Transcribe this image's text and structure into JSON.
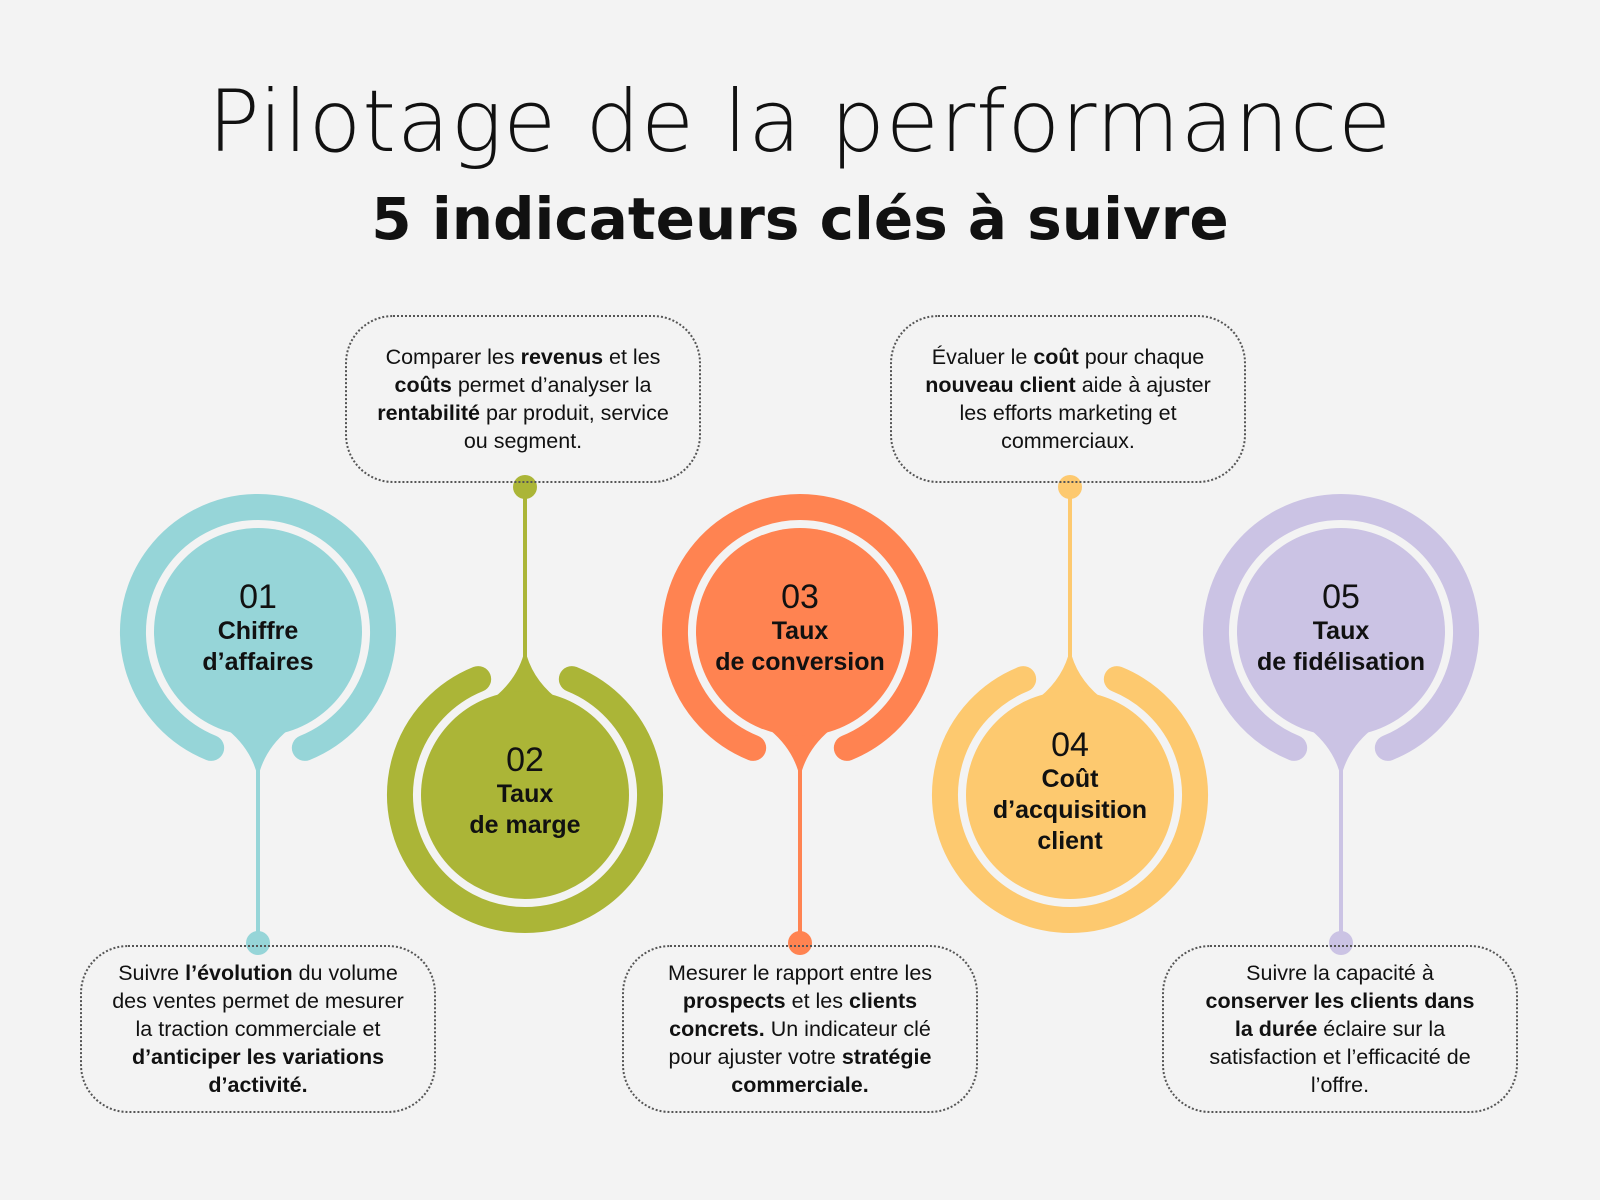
{
  "header": {
    "title": "Pilotage de la performance",
    "subtitle": "5 indicateurs clés à suivre"
  },
  "colors": {
    "background": "#f3f3f3",
    "kpi1": "#96d5d8",
    "kpi2": "#abb537",
    "kpi3": "#ff8351",
    "kpi4": "#fdc96f",
    "kpi5": "#cbc3e4"
  },
  "indicators": [
    {
      "num": "01",
      "lines": [
        "Chiffre",
        "d’affaires"
      ],
      "desc": [
        {
          "t": "Suivre "
        },
        {
          "t": "l’évolution",
          "b": true
        },
        {
          "t": " du volume des ventes permet de mesurer la traction commerciale et "
        },
        {
          "t": "d’anticiper les variations d’activité.",
          "b": true
        }
      ]
    },
    {
      "num": "02",
      "lines": [
        "Taux",
        "de marge"
      ],
      "desc": [
        {
          "t": "Comparer les "
        },
        {
          "t": "revenus",
          "b": true
        },
        {
          "t": " et les "
        },
        {
          "t": "coûts",
          "b": true
        },
        {
          "t": " permet d’analyser la "
        },
        {
          "t": "rentabilité",
          "b": true
        },
        {
          "t": " par produit, service ou segment."
        }
      ]
    },
    {
      "num": "03",
      "lines": [
        "Taux",
        "de conversion"
      ],
      "desc": [
        {
          "t": "Mesurer le rapport entre les "
        },
        {
          "t": "prospects",
          "b": true
        },
        {
          "t": " et les "
        },
        {
          "t": "clients concrets.",
          "b": true
        },
        {
          "t": " Un indicateur clé pour ajuster votre "
        },
        {
          "t": "stratégie commerciale.",
          "b": true
        }
      ]
    },
    {
      "num": "04",
      "lines": [
        "Coût",
        "d’acquisition",
        "client"
      ],
      "desc": [
        {
          "t": "Évaluer le "
        },
        {
          "t": "coût",
          "b": true
        },
        {
          "t": " pour chaque "
        },
        {
          "t": "nouveau client",
          "b": true
        },
        {
          "t": " aide à ajuster les efforts marketing et commerciaux."
        }
      ]
    },
    {
      "num": "05",
      "lines": [
        "Taux",
        "de fidélisation"
      ],
      "desc": [
        {
          "t": "Suivre la capacité à "
        },
        {
          "t": "conserver les clients dans la durée",
          "b": true
        },
        {
          "t": " éclaire sur la satisfaction et l’efficacité de l’offre."
        }
      ]
    }
  ]
}
